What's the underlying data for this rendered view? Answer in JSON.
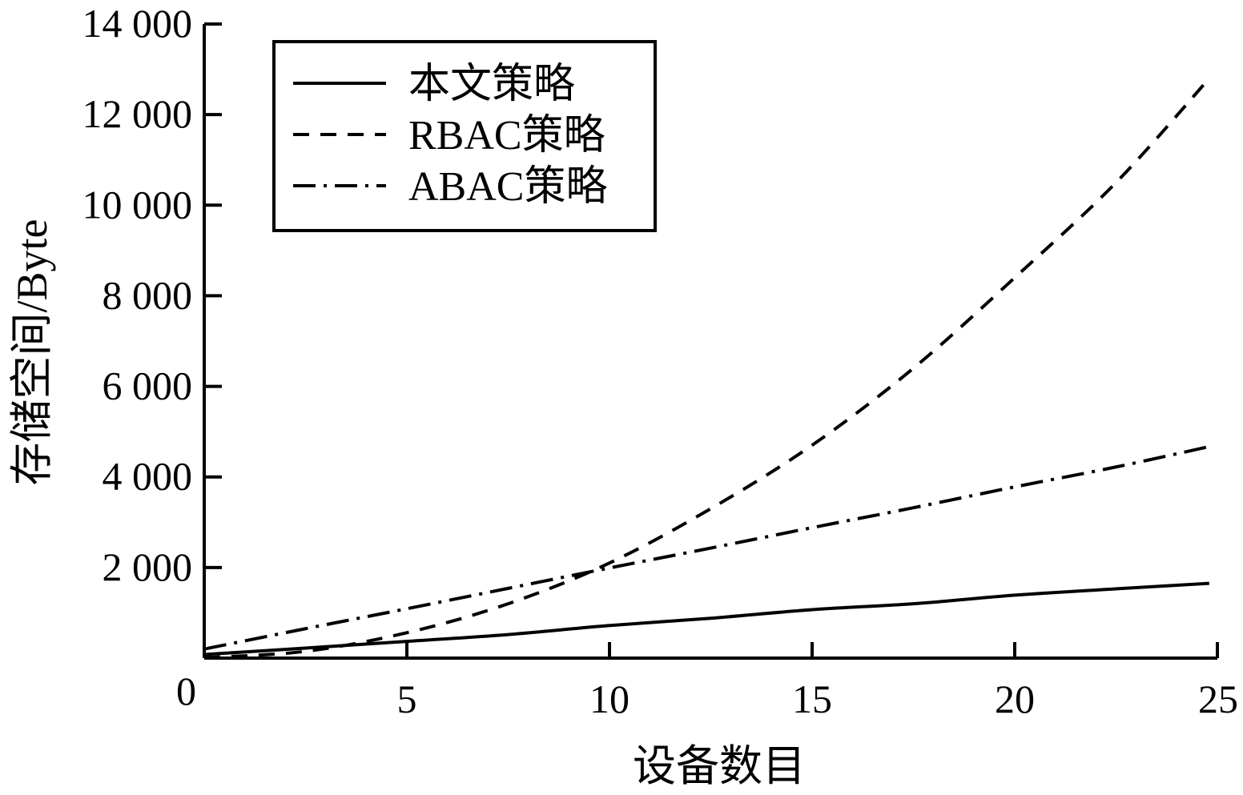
{
  "chart_data": {
    "type": "line",
    "title": "",
    "xlabel": "设备数目",
    "ylabel": "存储空间/Byte",
    "xlim": [
      0,
      25
    ],
    "ylim": [
      0,
      14000
    ],
    "x_ticks": [
      {
        "value": 0,
        "label": "0"
      },
      {
        "value": 5,
        "label": "5"
      },
      {
        "value": 10,
        "label": "10"
      },
      {
        "value": 15,
        "label": "15"
      },
      {
        "value": 20,
        "label": "20"
      },
      {
        "value": 25,
        "label": "25"
      }
    ],
    "y_ticks": [
      {
        "value": 2000,
        "label": "2 000"
      },
      {
        "value": 4000,
        "label": "4 000"
      },
      {
        "value": 6000,
        "label": "6 000"
      },
      {
        "value": 8000,
        "label": "8 000"
      },
      {
        "value": 10000,
        "label": "10 000"
      },
      {
        "value": 12000,
        "label": "12 000"
      },
      {
        "value": 14000,
        "label": "14 000"
      }
    ],
    "grid": false,
    "legend_position": "top-left",
    "series": [
      {
        "name": "本文策略",
        "line_style": "solid",
        "color": "#000000",
        "x": [
          0,
          2.5,
          5,
          7.5,
          10,
          12.5,
          15,
          17.5,
          20,
          22.5,
          24.8
        ],
        "y": [
          80,
          220,
          370,
          520,
          720,
          880,
          1070,
          1200,
          1390,
          1530,
          1650
        ]
      },
      {
        "name": "RBAC策略",
        "line_style": "dashed",
        "color": "#000000",
        "x": [
          0,
          2.5,
          5,
          7.5,
          10,
          12.5,
          15,
          17.5,
          20,
          22.5,
          24.8
        ],
        "y": [
          10,
          150,
          560,
          1200,
          2100,
          3300,
          4700,
          6400,
          8400,
          10500,
          12800
        ]
      },
      {
        "name": "ABAC策略",
        "line_style": "dash-dot-dot",
        "color": "#000000",
        "x": [
          0,
          2.5,
          5,
          7.5,
          10,
          12.5,
          15,
          17.5,
          20,
          22.5,
          24.8
        ],
        "y": [
          200,
          650,
          1090,
          1540,
          1990,
          2430,
          2880,
          3320,
          3780,
          4220,
          4670
        ]
      }
    ]
  }
}
